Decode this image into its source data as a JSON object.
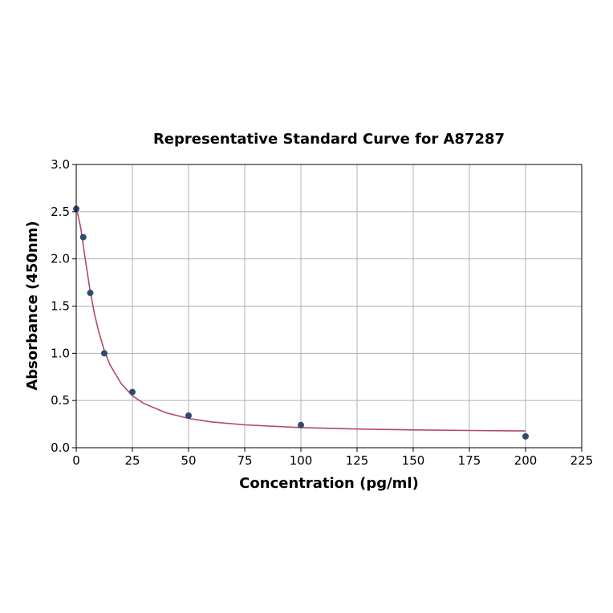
{
  "chart_data": {
    "type": "scatter",
    "title": "Representative Standard Curve for A87287",
    "xlabel": "Concentration (pg/ml)",
    "ylabel": "Absorbance (450nm)",
    "xlim": [
      0,
      225
    ],
    "ylim": [
      0,
      3.0
    ],
    "xticks": [
      "0",
      "25",
      "50",
      "75",
      "100",
      "125",
      "150",
      "175",
      "200",
      "225"
    ],
    "yticks": [
      "0.0",
      "0.5",
      "1.0",
      "1.5",
      "2.0",
      "2.5",
      "3.0"
    ],
    "grid": true,
    "points": {
      "x": [
        0,
        3.125,
        6.25,
        12.5,
        25,
        50,
        100,
        200
      ],
      "y": [
        2.53,
        2.23,
        1.64,
        1.0,
        0.59,
        0.34,
        0.24,
        0.12
      ],
      "color": "#2f4b6e"
    },
    "fit_curve": {
      "x": [
        0,
        2,
        4,
        6,
        8,
        10,
        12.5,
        15,
        20,
        25,
        30,
        40,
        50,
        60,
        75,
        100,
        125,
        150,
        175,
        200
      ],
      "y": [
        2.55,
        2.33,
        2.0,
        1.69,
        1.43,
        1.23,
        1.03,
        0.88,
        0.68,
        0.55,
        0.47,
        0.37,
        0.31,
        0.274,
        0.242,
        0.213,
        0.198,
        0.189,
        0.183,
        0.178
      ],
      "color": "#b5466b"
    }
  }
}
